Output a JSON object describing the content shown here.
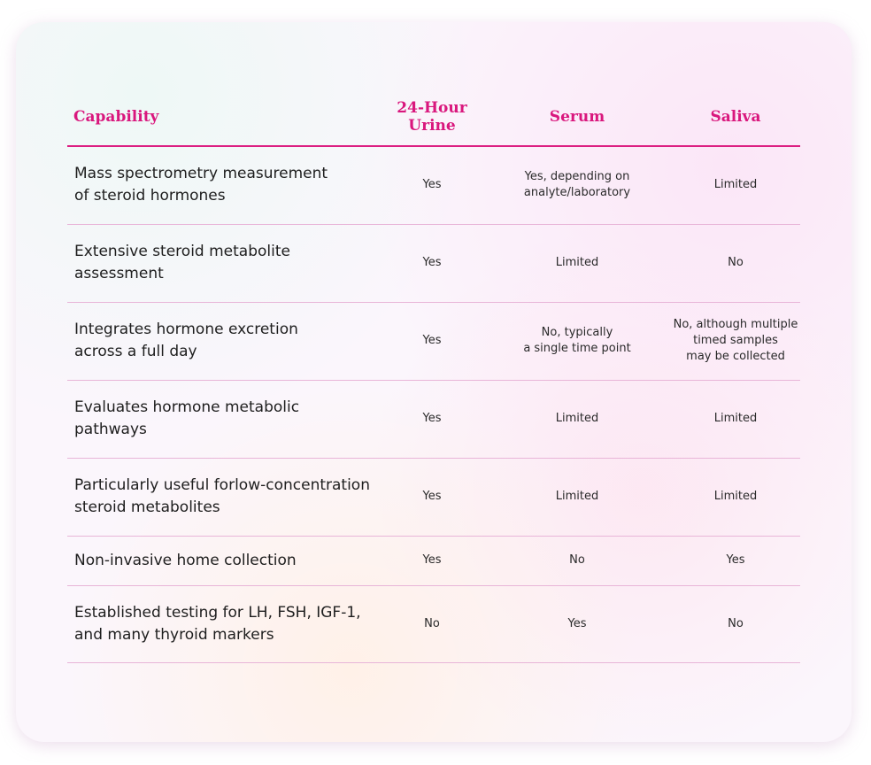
{
  "table": {
    "header": [
      "Capability",
      "24-Hour\nUrine",
      "Serum",
      "Saliva"
    ],
    "rows": [
      [
        "Mass spectrometry measurement\nof steroid hormones",
        "Yes",
        "Yes, depending on\nanalyte/laboratory",
        "Limited"
      ],
      [
        "Extensive steroid metabolite\nassessment",
        "Yes",
        "Limited",
        "No"
      ],
      [
        "Integrates hormone excretion\nacross a full day",
        "Yes",
        "No, typically\na single time point",
        "No, although multiple\ntimed samples\nmay be collected"
      ],
      [
        "Evaluates hormone metabolic\npathways",
        "Yes",
        "Limited",
        "Limited"
      ],
      [
        "Particularly useful forlow-concentration\nsteroid metabolites",
        "Yes",
        "Limited",
        "Limited"
      ],
      [
        "Non-invasive home collection",
        "Yes",
        "No",
        "Yes"
      ],
      [
        "Established testing for LH, FSH, IGF-1,\nand many thyroid markers",
        "No",
        "Yes",
        "No"
      ]
    ]
  }
}
